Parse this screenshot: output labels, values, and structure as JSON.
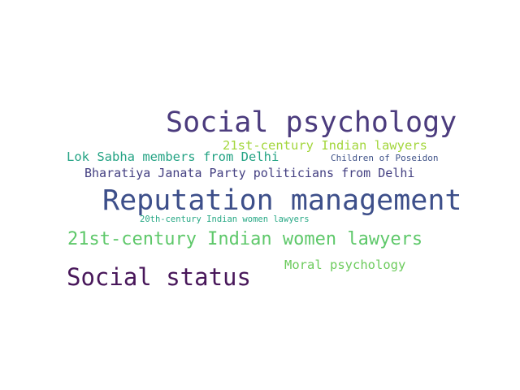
{
  "word_cloud": {
    "words": [
      {
        "id": "social_psychology",
        "text": "Social psychology",
        "color": "#4b3b7d"
      },
      {
        "id": "indian_lawyers_21c",
        "text": "21st-century Indian lawyers",
        "color": "#a3d63c"
      },
      {
        "id": "lok_sabha",
        "text": "Lok Sabha members from Delhi",
        "color": "#24a384"
      },
      {
        "id": "children_poseidon",
        "text": "Children of Poseidon",
        "color": "#3f5288"
      },
      {
        "id": "bjp_delhi",
        "text": "Bharatiya Janata Party politicians from Delhi",
        "color": "#433f81"
      },
      {
        "id": "reputation_management",
        "text": "Reputation management",
        "color": "#3d4f8a"
      },
      {
        "id": "women_lawyers_20c",
        "text": "20th-century Indian women lawyers",
        "color": "#27a885"
      },
      {
        "id": "women_lawyers_21c",
        "text": "21st-century Indian women lawyers",
        "color": "#5ec86a"
      },
      {
        "id": "moral_psychology",
        "text": "Moral psychology",
        "color": "#6ccb5c"
      },
      {
        "id": "social_status",
        "text": "Social status",
        "color": "#48175a"
      }
    ]
  }
}
